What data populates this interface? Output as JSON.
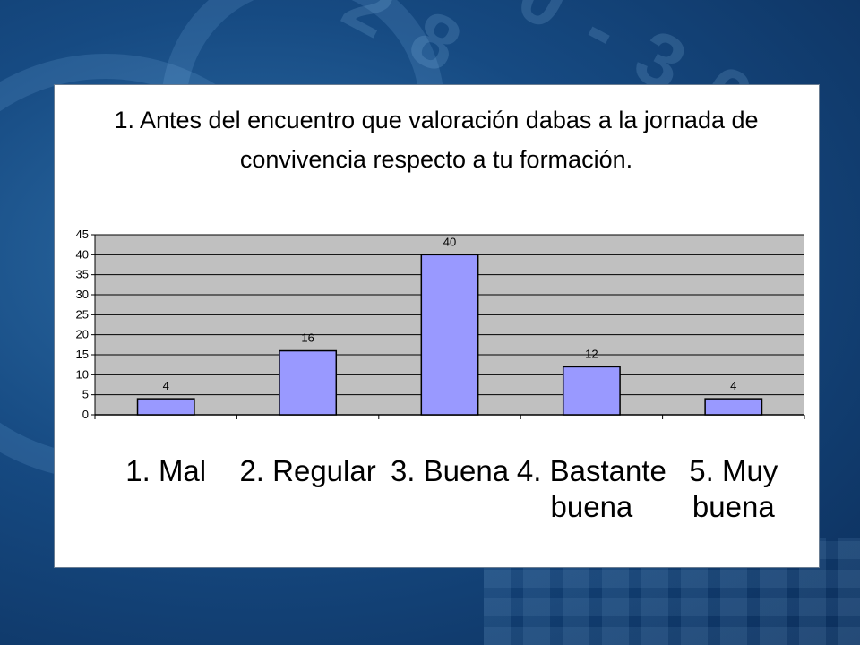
{
  "chart_data": {
    "type": "bar",
    "title_lines": [
      "1. Antes del encuentro que valoración dabas a la jornada de",
      "convivencia respecto a tu formación."
    ],
    "categories": [
      [
        "1. Mal"
      ],
      [
        "2. Regular"
      ],
      [
        "3. Buena"
      ],
      [
        "4. Bastante",
        "buena"
      ],
      [
        "5. Muy",
        "buena"
      ]
    ],
    "values": [
      4,
      16,
      40,
      12,
      4
    ],
    "y_ticks": [
      0,
      5,
      10,
      15,
      20,
      25,
      30,
      35,
      40,
      45
    ],
    "ylim": [
      0,
      45
    ],
    "xlabel": "",
    "ylabel": "",
    "grid": true,
    "colors": {
      "bar_fill": "#9999ff",
      "bar_stroke": "#000000",
      "plot_background": "#c0c0c0",
      "gridline": "#000000"
    }
  }
}
